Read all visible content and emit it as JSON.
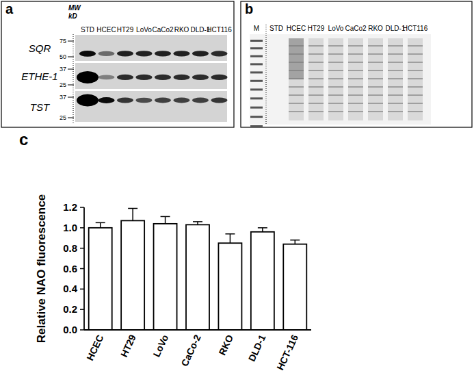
{
  "panel_a": {
    "letter": "a",
    "mw_label": [
      "MW",
      "kD"
    ],
    "lanes": [
      "STD",
      "HCEC",
      "HT29",
      "LoVo",
      "CaCo2",
      "RKO",
      "DLD-1",
      "HCT116"
    ],
    "rows": [
      {
        "name": "SQR",
        "markers": [
          75,
          50
        ],
        "bands": [
          0.95,
          0.5,
          0.85,
          0.85,
          0.85,
          0.85,
          0.85,
          0.8
        ]
      },
      {
        "name": "ETHE-1",
        "markers": [
          37,
          25
        ],
        "bands": [
          1.0,
          0.4,
          0.8,
          0.8,
          0.8,
          0.8,
          0.8,
          0.8
        ]
      },
      {
        "name": "TST",
        "markers": [
          37,
          25
        ],
        "bands": [
          1.0,
          0.95,
          0.75,
          0.65,
          0.7,
          0.7,
          0.7,
          0.75
        ]
      }
    ]
  },
  "panel_b": {
    "letter": "b",
    "lanes": [
      "M",
      "STD",
      "HCEC",
      "HT29",
      "LoVo",
      "CaCo2",
      "RKO",
      "DLD-1",
      "HCT116"
    ]
  },
  "chart_data": {
    "type": "bar",
    "title": "c",
    "y_label": "Relative NAO fluorescence",
    "categories": [
      "HCEC",
      "HT29",
      "LoVo",
      "CaCo-2",
      "RKO",
      "DLD-1",
      "HCT-116"
    ],
    "values": [
      1.0,
      1.07,
      1.04,
      1.03,
      0.85,
      0.96,
      0.84
    ],
    "errors": [
      0.05,
      0.12,
      0.07,
      0.03,
      0.09,
      0.04,
      0.04
    ],
    "color": "#ffffff",
    "ylim": [
      0,
      1.2
    ],
    "yticks": [
      {
        "value": 0,
        "label": "0.0"
      },
      0.2,
      0.4,
      0.6,
      0.8,
      {
        "value": 1,
        "label": "1.0"
      },
      1.2
    ],
    "grid": false
  }
}
